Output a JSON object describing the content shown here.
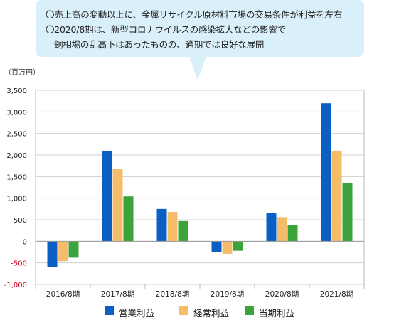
{
  "callout": {
    "line1": "〇売上高の変動以上に、金属リサイクル原材料市場の交易条件が利益を左右",
    "line2": "〇2020/8期は、新型コロナウイルスの感染拡大などの影響で",
    "line3": "銅相場の乱高下はあったものの、通期では良好な展開"
  },
  "chart_data": {
    "type": "bar",
    "unit_label": "（百万円）",
    "categories": [
      "2016/8期",
      "2017/8期",
      "2018/8期",
      "2019/8期",
      "2020/8期",
      "2021/8期"
    ],
    "series": [
      {
        "name": "営業利益",
        "color": "#0a5fc4",
        "values": [
          -590,
          2100,
          750,
          -250,
          650,
          3200
        ]
      },
      {
        "name": "経常利益",
        "color": "#f5bd6a",
        "values": [
          -460,
          1680,
          680,
          -290,
          560,
          2100
        ]
      },
      {
        "name": "当期利益",
        "color": "#3aa33a",
        "values": [
          -380,
          1040,
          470,
          -220,
          380,
          1350
        ]
      }
    ],
    "ylim": [
      -1000,
      3500
    ],
    "yticks": [
      3500,
      3000,
      2500,
      2000,
      1500,
      1000,
      500,
      0,
      -500,
      -1000
    ],
    "ytick_labels": [
      "3,500",
      "3,000",
      "2,500",
      "2,000",
      "1,500",
      "1,000",
      "500",
      "0",
      "-500",
      "-1,000"
    ],
    "negative_tick_color": "#d0021b",
    "grid": true,
    "legend_position": "bottom"
  }
}
